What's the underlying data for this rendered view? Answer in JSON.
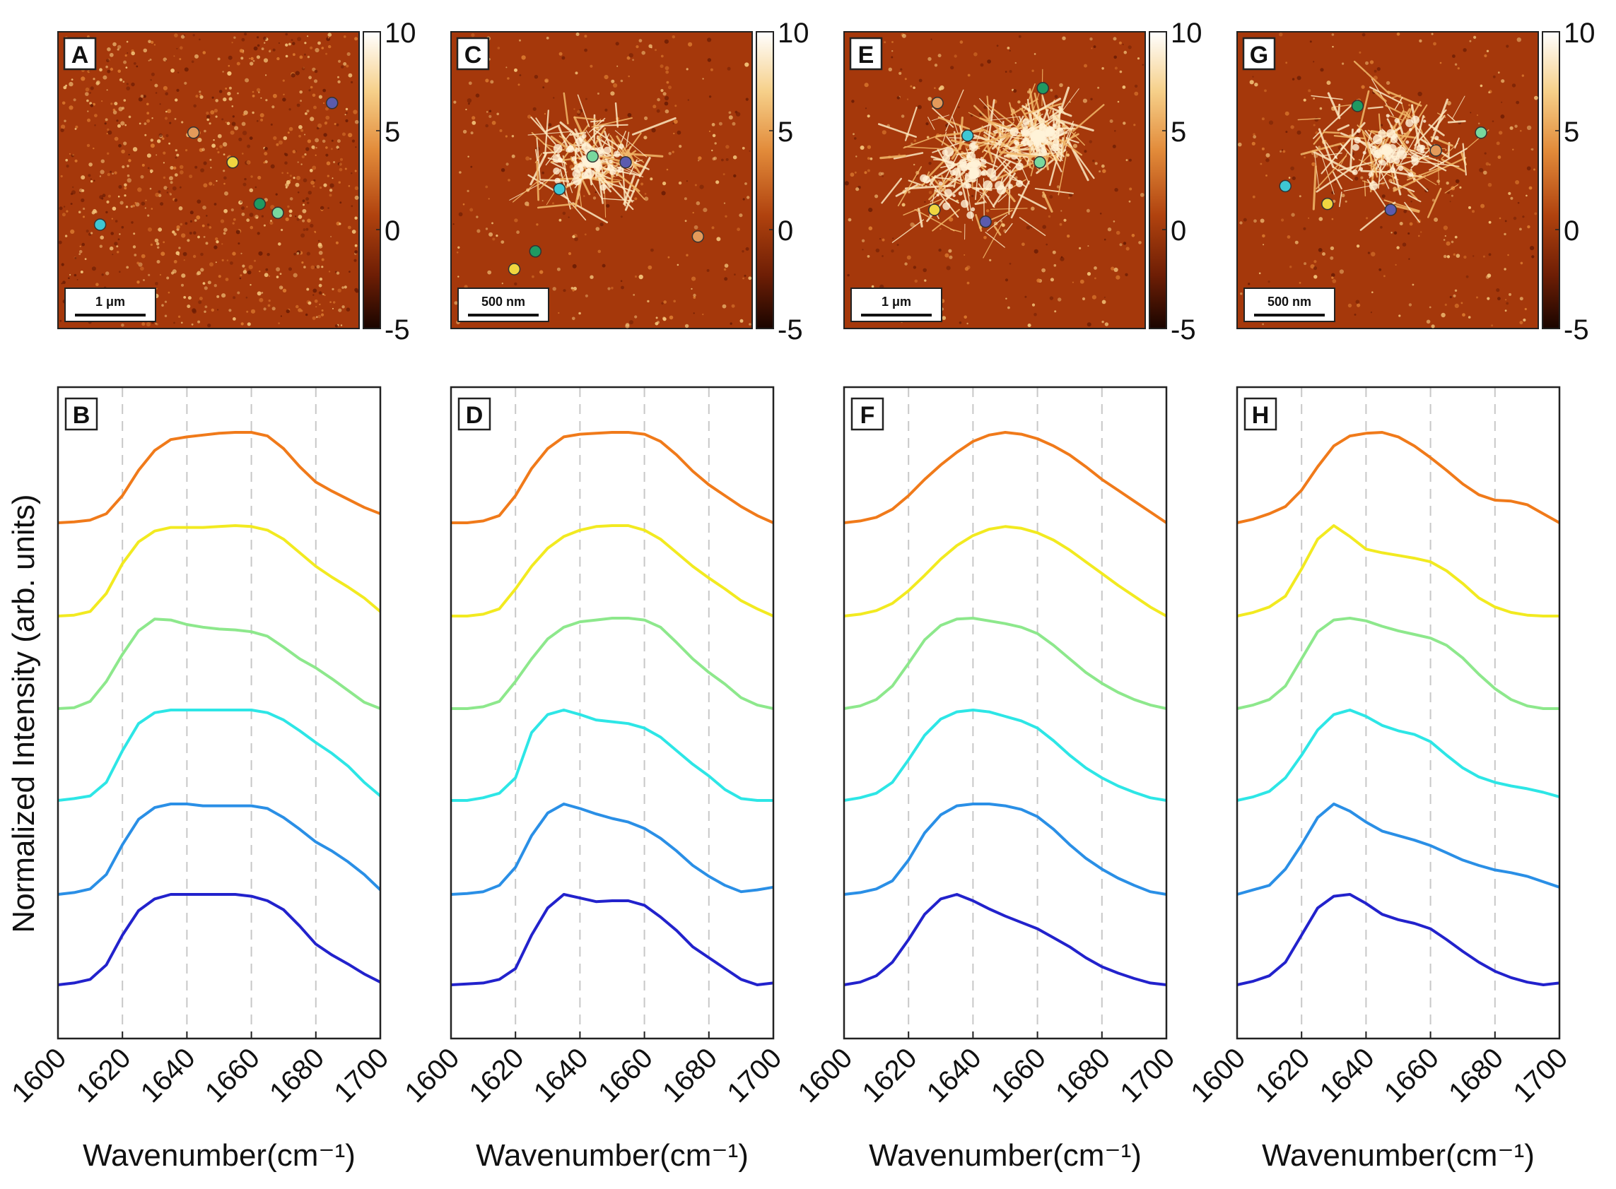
{
  "figure": {
    "ylabel": "Normalized Intensity (arb. units)",
    "colorbar_ticks": [
      "10",
      "5",
      "0",
      "-5"
    ],
    "series_colors": [
      "#f07a1a",
      "#f2ea20",
      "#8de88c",
      "#2de6e6",
      "#2a8fe6",
      "#2222cc"
    ],
    "marker_colors": [
      "#e39a5a",
      "#f0d640",
      "#78d89e",
      "#3ec7d4",
      "#1f9a62",
      "#5b5bae"
    ]
  },
  "chart_data": [
    {
      "id": "A",
      "type": "heatmap",
      "scalebar": "1 μm",
      "colorbar_range": [
        -5,
        10
      ]
    },
    {
      "id": "B",
      "type": "line",
      "xlabel": "Wavenumber(cm⁻¹)",
      "xticks": [
        "1600",
        "1620",
        "1640",
        "1660",
        "1680",
        "1700"
      ],
      "xlim": [
        1600,
        1700
      ],
      "grid_x": [
        1620,
        1640,
        1660,
        1680
      ],
      "x": [
        1600,
        1605,
        1610,
        1615,
        1620,
        1625,
        1630,
        1635,
        1640,
        1645,
        1650,
        1655,
        1660,
        1665,
        1670,
        1675,
        1680,
        1685,
        1690,
        1695,
        1700
      ],
      "series": [
        {
          "values": [
            0,
            0.01,
            0.03,
            0.1,
            0.3,
            0.58,
            0.8,
            0.92,
            0.95,
            0.97,
            0.99,
            1,
            1,
            0.96,
            0.82,
            0.62,
            0.45,
            0.35,
            0.26,
            0.17,
            0.1
          ]
        },
        {
          "values": [
            0,
            0.01,
            0.05,
            0.25,
            0.58,
            0.82,
            0.94,
            0.98,
            0.98,
            0.98,
            0.99,
            1,
            0.99,
            0.95,
            0.85,
            0.7,
            0.55,
            0.43,
            0.32,
            0.2,
            0.05
          ]
        },
        {
          "values": [
            0,
            0.01,
            0.08,
            0.3,
            0.6,
            0.86,
            0.99,
            0.98,
            0.93,
            0.9,
            0.88,
            0.87,
            0.85,
            0.8,
            0.68,
            0.55,
            0.45,
            0.33,
            0.2,
            0.07,
            0
          ]
        },
        {
          "values": [
            0,
            0.02,
            0.05,
            0.2,
            0.55,
            0.85,
            0.97,
            1,
            1,
            1,
            1,
            1,
            1,
            0.97,
            0.89,
            0.77,
            0.64,
            0.52,
            0.38,
            0.2,
            0.05
          ]
        },
        {
          "values": [
            0,
            0.02,
            0.06,
            0.22,
            0.55,
            0.83,
            0.96,
            1,
            1,
            0.98,
            0.98,
            0.98,
            0.98,
            0.95,
            0.85,
            0.72,
            0.58,
            0.48,
            0.36,
            0.22,
            0.05
          ]
        },
        {
          "values": [
            0,
            0.02,
            0.06,
            0.22,
            0.55,
            0.82,
            0.95,
            1,
            1,
            1,
            1,
            1,
            0.98,
            0.93,
            0.83,
            0.65,
            0.45,
            0.33,
            0.23,
            0.12,
            0.03
          ]
        }
      ]
    },
    {
      "id": "C",
      "type": "heatmap",
      "scalebar": "500 nm",
      "colorbar_range": [
        -5,
        10
      ]
    },
    {
      "id": "D",
      "type": "line",
      "xlabel": "Wavenumber(cm⁻¹)",
      "xticks": [
        "1600",
        "1620",
        "1640",
        "1660",
        "1680",
        "1700"
      ],
      "xlim": [
        1600,
        1700
      ],
      "grid_x": [
        1620,
        1640,
        1660,
        1680
      ],
      "x": [
        1600,
        1605,
        1610,
        1615,
        1620,
        1625,
        1630,
        1635,
        1640,
        1645,
        1650,
        1655,
        1660,
        1665,
        1670,
        1675,
        1680,
        1685,
        1690,
        1695,
        1700
      ],
      "series": [
        {
          "values": [
            0,
            0,
            0.02,
            0.08,
            0.3,
            0.6,
            0.82,
            0.95,
            0.98,
            0.99,
            1,
            1,
            0.98,
            0.9,
            0.75,
            0.57,
            0.42,
            0.3,
            0.18,
            0.08,
            0
          ]
        },
        {
          "values": [
            0,
            0,
            0.02,
            0.08,
            0.3,
            0.55,
            0.75,
            0.88,
            0.95,
            0.99,
            1,
            1,
            0.95,
            0.85,
            0.7,
            0.55,
            0.42,
            0.3,
            0.17,
            0.08,
            0
          ]
        },
        {
          "values": [
            0,
            0,
            0.02,
            0.08,
            0.3,
            0.55,
            0.77,
            0.9,
            0.96,
            0.98,
            1,
            1,
            0.98,
            0.9,
            0.73,
            0.55,
            0.4,
            0.27,
            0.12,
            0.04,
            0
          ]
        },
        {
          "values": [
            0,
            0,
            0.03,
            0.08,
            0.25,
            0.75,
            0.95,
            1,
            0.95,
            0.89,
            0.87,
            0.85,
            0.8,
            0.7,
            0.55,
            0.4,
            0.27,
            0.12,
            0.02,
            0,
            0
          ]
        },
        {
          "values": [
            0,
            0.01,
            0.03,
            0.1,
            0.3,
            0.65,
            0.9,
            1,
            0.95,
            0.89,
            0.84,
            0.8,
            0.73,
            0.62,
            0.48,
            0.32,
            0.2,
            0.1,
            0.03,
            0.05,
            0.08
          ]
        },
        {
          "values": [
            0,
            0.01,
            0.02,
            0.06,
            0.18,
            0.55,
            0.85,
            1,
            0.96,
            0.92,
            0.93,
            0.93,
            0.88,
            0.75,
            0.6,
            0.42,
            0.3,
            0.18,
            0.06,
            0,
            0.02
          ]
        }
      ]
    },
    {
      "id": "E",
      "type": "heatmap",
      "scalebar": "1 μm",
      "colorbar_range": [
        -5,
        10
      ]
    },
    {
      "id": "F",
      "type": "line",
      "xlabel": "Wavenumber(cm⁻¹)",
      "xticks": [
        "1600",
        "1620",
        "1640",
        "1660",
        "1680",
        "1700"
      ],
      "xlim": [
        1600,
        1700
      ],
      "grid_x": [
        1620,
        1640,
        1660,
        1680
      ],
      "x": [
        1600,
        1605,
        1610,
        1615,
        1620,
        1625,
        1630,
        1635,
        1640,
        1645,
        1650,
        1655,
        1660,
        1665,
        1670,
        1675,
        1680,
        1685,
        1690,
        1695,
        1700
      ],
      "series": [
        {
          "values": [
            0,
            0.02,
            0.06,
            0.15,
            0.3,
            0.48,
            0.64,
            0.78,
            0.9,
            0.97,
            1,
            0.98,
            0.93,
            0.85,
            0.75,
            0.62,
            0.48,
            0.36,
            0.24,
            0.12,
            0
          ]
        },
        {
          "values": [
            0,
            0.02,
            0.06,
            0.14,
            0.28,
            0.45,
            0.63,
            0.78,
            0.89,
            0.96,
            0.99,
            0.97,
            0.92,
            0.84,
            0.73,
            0.6,
            0.47,
            0.34,
            0.22,
            0.1,
            0
          ]
        },
        {
          "values": [
            0,
            0.03,
            0.1,
            0.25,
            0.5,
            0.76,
            0.92,
            0.99,
            1,
            0.97,
            0.94,
            0.9,
            0.83,
            0.7,
            0.55,
            0.4,
            0.28,
            0.18,
            0.1,
            0.04,
            0
          ]
        },
        {
          "values": [
            0,
            0.03,
            0.08,
            0.2,
            0.45,
            0.72,
            0.9,
            0.98,
            1,
            0.98,
            0.93,
            0.88,
            0.8,
            0.66,
            0.5,
            0.36,
            0.25,
            0.16,
            0.09,
            0.03,
            0
          ]
        },
        {
          "values": [
            0,
            0.02,
            0.06,
            0.15,
            0.38,
            0.68,
            0.88,
            0.98,
            1,
            1,
            0.98,
            0.94,
            0.86,
            0.72,
            0.55,
            0.4,
            0.28,
            0.18,
            0.1,
            0.03,
            0
          ]
        },
        {
          "values": [
            0,
            0.03,
            0.1,
            0.25,
            0.5,
            0.78,
            0.95,
            1,
            0.93,
            0.84,
            0.76,
            0.69,
            0.62,
            0.52,
            0.42,
            0.3,
            0.2,
            0.13,
            0.07,
            0.02,
            0
          ]
        }
      ]
    },
    {
      "id": "G",
      "type": "heatmap",
      "scalebar": "500 nm",
      "colorbar_range": [
        -5,
        10
      ]
    },
    {
      "id": "H",
      "type": "line",
      "xlabel": "Wavenumber(cm⁻¹)",
      "xticks": [
        "1600",
        "1620",
        "1640",
        "1660",
        "1680",
        "1700"
      ],
      "xlim": [
        1600,
        1700
      ],
      "grid_x": [
        1620,
        1640,
        1660,
        1680
      ],
      "x": [
        1600,
        1605,
        1610,
        1615,
        1620,
        1625,
        1630,
        1635,
        1640,
        1645,
        1650,
        1655,
        1660,
        1665,
        1670,
        1675,
        1680,
        1685,
        1690,
        1695,
        1700
      ],
      "series": [
        {
          "values": [
            0,
            0.04,
            0.1,
            0.18,
            0.36,
            0.62,
            0.85,
            0.96,
            0.99,
            1,
            0.95,
            0.85,
            0.72,
            0.58,
            0.43,
            0.31,
            0.25,
            0.24,
            0.2,
            0.1,
            0
          ]
        },
        {
          "values": [
            0,
            0.04,
            0.1,
            0.22,
            0.52,
            0.85,
            1,
            0.88,
            0.74,
            0.7,
            0.67,
            0.64,
            0.6,
            0.5,
            0.36,
            0.2,
            0.1,
            0.04,
            0.01,
            0,
            0
          ]
        },
        {
          "values": [
            0,
            0.04,
            0.1,
            0.25,
            0.55,
            0.85,
            0.98,
            1,
            0.97,
            0.91,
            0.86,
            0.82,
            0.78,
            0.7,
            0.56,
            0.38,
            0.22,
            0.1,
            0.03,
            0,
            0
          ]
        },
        {
          "values": [
            0,
            0.04,
            0.1,
            0.25,
            0.5,
            0.78,
            0.95,
            1,
            0.93,
            0.83,
            0.77,
            0.73,
            0.65,
            0.5,
            0.36,
            0.26,
            0.2,
            0.16,
            0.13,
            0.09,
            0.04
          ]
        },
        {
          "values": [
            0,
            0.05,
            0.1,
            0.28,
            0.55,
            0.85,
            1,
            0.92,
            0.8,
            0.7,
            0.65,
            0.6,
            0.54,
            0.46,
            0.38,
            0.32,
            0.27,
            0.24,
            0.2,
            0.14,
            0.08
          ]
        },
        {
          "values": [
            0,
            0.04,
            0.1,
            0.25,
            0.55,
            0.85,
            0.98,
            1,
            0.9,
            0.78,
            0.72,
            0.68,
            0.62,
            0.5,
            0.37,
            0.25,
            0.15,
            0.08,
            0.03,
            0,
            0.02
          ]
        }
      ]
    }
  ]
}
